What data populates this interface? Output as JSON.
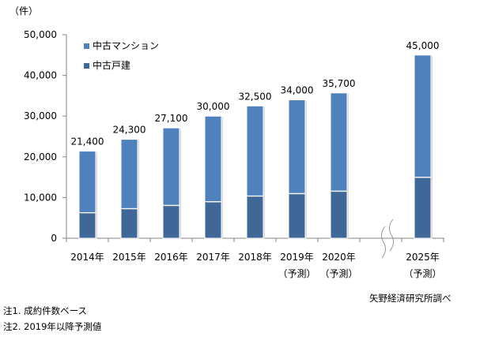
{
  "chart_data": {
    "type": "bar",
    "stacked": true,
    "unit_label": "（件）",
    "categories": [
      "2014年",
      "2015年",
      "2016年",
      "2017年",
      "2018年",
      "2019年",
      "2020年",
      "2025年"
    ],
    "category_sublabels": [
      "",
      "",
      "",
      "",
      "",
      "（予測）",
      "（予測）",
      "（予測）"
    ],
    "series": [
      {
        "name": "中古戸建",
        "color": "#3f6898",
        "values": [
          6300,
          7300,
          8100,
          9000,
          10400,
          11000,
          11600,
          15000
        ]
      },
      {
        "name": "中古マンション",
        "color": "#4f81bd",
        "values": [
          15100,
          17000,
          19000,
          21000,
          22100,
          23000,
          24100,
          30000
        ]
      }
    ],
    "totals": [
      "21,400",
      "24,300",
      "27,100",
      "30,000",
      "32,500",
      "34,000",
      "35,700",
      "45,000"
    ],
    "total_values": [
      21400,
      24300,
      27100,
      30000,
      32500,
      34000,
      35700,
      45000
    ],
    "legend_order": [
      "中古マンション",
      "中古戸建"
    ],
    "legend_placement": "top-left",
    "yticks": [
      "0",
      "10,000",
      "20,000",
      "30,000",
      "40,000",
      "50,000"
    ],
    "ylim": [
      0,
      50000
    ],
    "axis_break_before_index": 7
  },
  "notes": [
    "注1. 成約件数ベース",
    "注2. 2019年以降予測値"
  ],
  "source": "矢野経済研究所調べ"
}
